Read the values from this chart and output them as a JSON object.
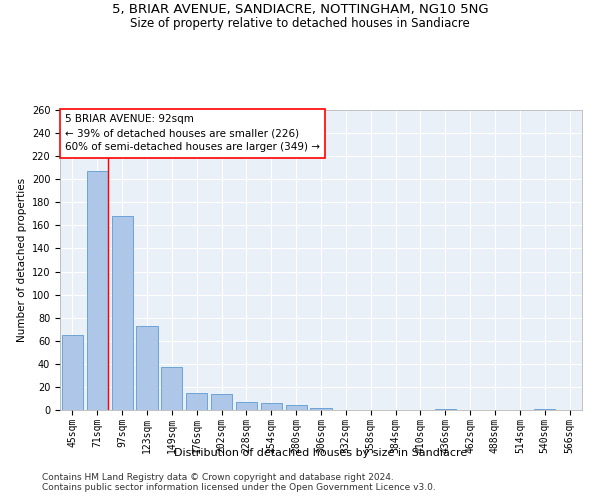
{
  "title1": "5, BRIAR AVENUE, SANDIACRE, NOTTINGHAM, NG10 5NG",
  "title2": "Size of property relative to detached houses in Sandiacre",
  "xlabel": "Distribution of detached houses by size in Sandiacre",
  "ylabel": "Number of detached properties",
  "categories": [
    "45sqm",
    "71sqm",
    "97sqm",
    "123sqm",
    "149sqm",
    "176sqm",
    "202sqm",
    "228sqm",
    "254sqm",
    "280sqm",
    "306sqm",
    "332sqm",
    "358sqm",
    "384sqm",
    "410sqm",
    "436sqm",
    "462sqm",
    "488sqm",
    "514sqm",
    "540sqm",
    "566sqm"
  ],
  "values": [
    65,
    207,
    168,
    73,
    37,
    15,
    14,
    7,
    6,
    4,
    2,
    0,
    0,
    0,
    0,
    1,
    0,
    0,
    0,
    1,
    0
  ],
  "bar_color": "#aec6e8",
  "bar_edge_color": "#5b9bd5",
  "marker_label": "5 BRIAR AVENUE: 92sqm",
  "annotation_line1": "← 39% of detached houses are smaller (226)",
  "annotation_line2": "60% of semi-detached houses are larger (349) →",
  "annotation_box_color": "white",
  "annotation_box_edge_color": "red",
  "marker_line_color": "red",
  "ylim": [
    0,
    260
  ],
  "yticks": [
    0,
    20,
    40,
    60,
    80,
    100,
    120,
    140,
    160,
    180,
    200,
    220,
    240,
    260
  ],
  "background_color": "#eaf0f8",
  "grid_color": "white",
  "footer1": "Contains HM Land Registry data © Crown copyright and database right 2024.",
  "footer2": "Contains public sector information licensed under the Open Government Licence v3.0.",
  "title1_fontsize": 9.5,
  "title2_fontsize": 8.5,
  "xlabel_fontsize": 8,
  "ylabel_fontsize": 7.5,
  "tick_fontsize": 7,
  "footer_fontsize": 6.5,
  "annotation_fontsize": 7.5
}
